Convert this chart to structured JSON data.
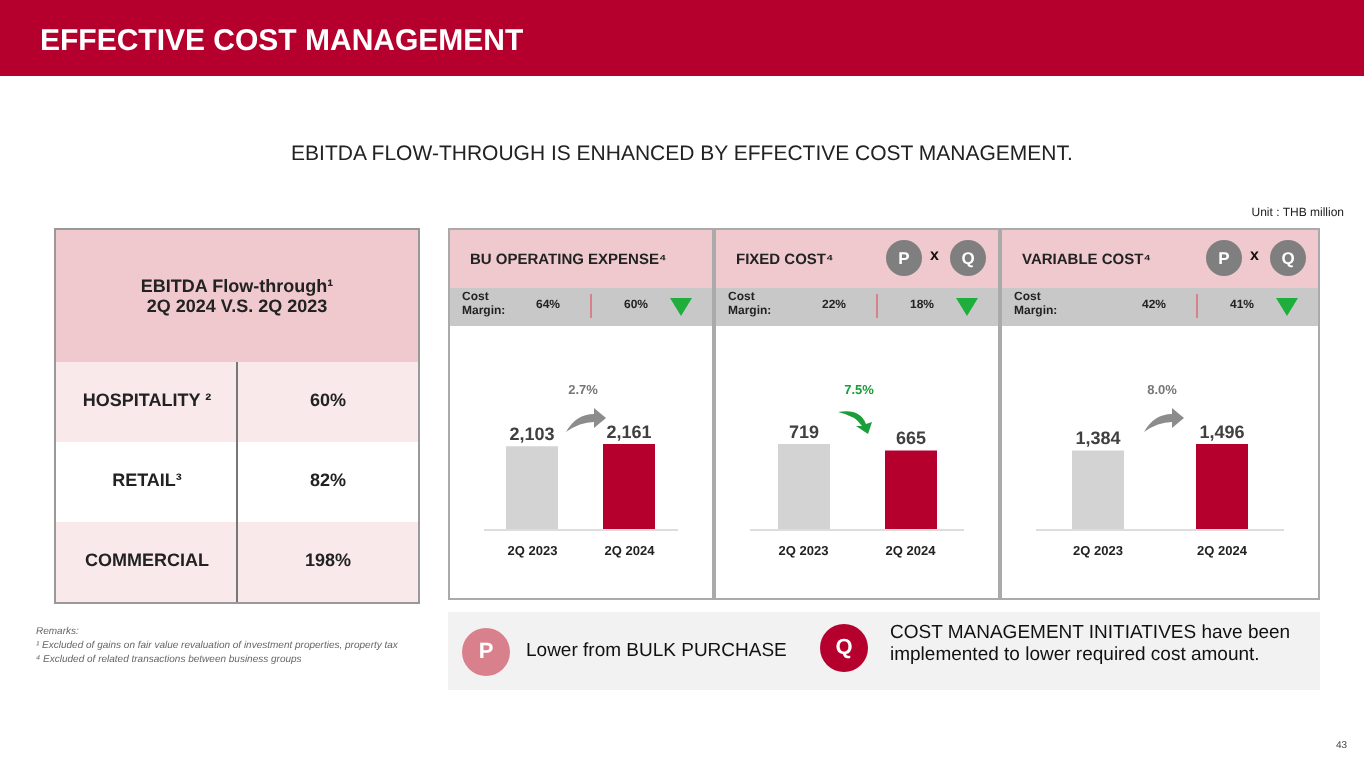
{
  "chart_data": [
    {
      "type": "other",
      "title": "EFFECTIVE COST MANAGEMENT",
      "subtitle": "EBITDA FLOW-THROUGH IS ENHANCED BY EFFECTIVE COST MANAGEMENT.",
      "annotations": [
        "EBITDA Flow-through¹",
        "2Q 2024 V.S. 2Q 2023",
        "HOSPITALITY ²",
        "60%",
        "RETAIL³",
        "82%",
        "COMMERCIAL",
        "198%",
        "Unit : THB million",
        "P",
        "Lower from BULK PURCHASE",
        "Q",
        "COST MANAGEMENT INITIATIVES have been implemented to lower required cost amount.",
        "Remarks:",
        "¹ Excluded of gains on fair value revaluation of investment properties, property tax",
        "⁴ Excluded of related transactions between business groups",
        "43"
      ]
    },
    {
      "type": "bar",
      "title": "BU OPERATING EXPENSE⁴",
      "categories": [
        "2Q 2023",
        "2Q 2024"
      ],
      "values": [
        2103,
        2161
      ],
      "value_labels": [
        "2,103",
        "2,161"
      ],
      "colors": [
        "#d3d3d3",
        "#b5002d"
      ],
      "annotations": [
        "Cost Margin:",
        "64%",
        "60%",
        "2.7%"
      ]
    },
    {
      "type": "bar",
      "title": "FIXED COST⁴",
      "categories": [
        "2Q 2023",
        "2Q 2024"
      ],
      "values": [
        719,
        665
      ],
      "value_labels": [
        "719",
        "665"
      ],
      "colors": [
        "#d3d3d3",
        "#b5002d"
      ],
      "annotations": [
        "Cost Margin:",
        "22%",
        "18%",
        "7.5%",
        "P",
        "x",
        "Q"
      ]
    },
    {
      "type": "bar",
      "title": "VARIABLE COST⁴",
      "categories": [
        "2Q 2023",
        "2Q 2024"
      ],
      "values": [
        1384,
        1496
      ],
      "value_labels": [
        "1,384",
        "1,496"
      ],
      "colors": [
        "#d3d3d3",
        "#b5002d"
      ],
      "annotations": [
        "Cost Margin:",
        "42%",
        "41%",
        "8.0%",
        "P",
        "x",
        "Q"
      ]
    }
  ]
}
